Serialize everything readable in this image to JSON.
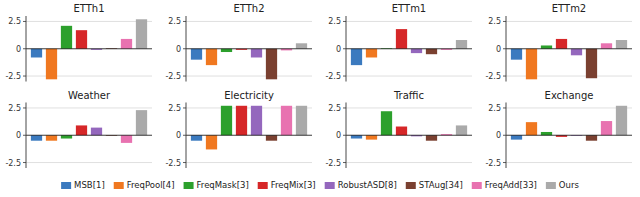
{
  "chart_data": [
    {
      "type": "bar",
      "title": "ETTh1",
      "categories": [
        "MSB[1]",
        "FreqPool[4]",
        "FreqMask[3]",
        "FreqMix[3]",
        "RobustASD[8]",
        "STAug[34]",
        "FreqAdd[33]",
        "Ours"
      ],
      "values": [
        -0.8,
        -2.8,
        2.1,
        1.7,
        -0.1,
        0.05,
        0.9,
        2.7
      ],
      "colors": [
        "#3b7abf",
        "#f07820",
        "#2ca02c",
        "#d62728",
        "#9467bd",
        "#7a4030",
        "#e872b0",
        "#aaaaaa"
      ],
      "ylim": [
        -3.0,
        3.0
      ],
      "yticks": [
        -2.5,
        0,
        2.5
      ],
      "grid": true,
      "tick_labels": "y",
      "legend": "bottom"
    },
    {
      "type": "bar",
      "title": "ETTh2",
      "categories": [
        "MSB[1]",
        "FreqPool[4]",
        "FreqMask[3]",
        "FreqMix[3]",
        "RobustASD[8]",
        "STAug[34]",
        "FreqAdd[33]",
        "Ours"
      ],
      "values": [
        -1.0,
        -1.5,
        -0.3,
        -0.1,
        -0.8,
        -2.8,
        -0.15,
        0.5
      ],
      "colors": [
        "#3b7abf",
        "#f07820",
        "#2ca02c",
        "#d62728",
        "#9467bd",
        "#7a4030",
        "#e872b0",
        "#aaaaaa"
      ],
      "ylim": [
        -3.0,
        3.0
      ],
      "yticks": [
        -2.5,
        0,
        2.5
      ],
      "grid": true,
      "tick_labels": "y"
    },
    {
      "type": "bar",
      "title": "ETTm1",
      "categories": [
        "MSB[1]",
        "FreqPool[4]",
        "FreqMask[3]",
        "FreqMix[3]",
        "RobustASD[8]",
        "STAug[34]",
        "FreqAdd[33]",
        "Ours"
      ],
      "values": [
        -1.5,
        -0.8,
        0.05,
        1.8,
        -0.4,
        -0.5,
        -0.1,
        0.8
      ],
      "colors": [
        "#3b7abf",
        "#f07820",
        "#2ca02c",
        "#d62728",
        "#9467bd",
        "#7a4030",
        "#e872b0",
        "#aaaaaa"
      ],
      "ylim": [
        -3.0,
        3.0
      ],
      "yticks": [
        -2.5,
        0,
        2.5
      ],
      "grid": true,
      "tick_labels": "y"
    },
    {
      "type": "bar",
      "title": "ETTm2",
      "categories": [
        "MSB[1]",
        "FreqPool[4]",
        "FreqMask[3]",
        "FreqMix[3]",
        "RobustASD[8]",
        "STAug[34]",
        "FreqAdd[33]",
        "Ours"
      ],
      "values": [
        -1.0,
        -2.8,
        0.3,
        0.9,
        -0.6,
        -2.7,
        0.5,
        0.8
      ],
      "colors": [
        "#3b7abf",
        "#f07820",
        "#2ca02c",
        "#d62728",
        "#9467bd",
        "#7a4030",
        "#e872b0",
        "#aaaaaa"
      ],
      "ylim": [
        -3.0,
        3.0
      ],
      "yticks": [
        -2.5,
        0,
        2.5
      ],
      "grid": true,
      "tick_labels": "y"
    },
    {
      "type": "bar",
      "title": "Weather",
      "categories": [
        "MSB[1]",
        "FreqPool[4]",
        "FreqMask[3]",
        "FreqMix[3]",
        "RobustASD[8]",
        "STAug[34]",
        "FreqAdd[33]",
        "Ours"
      ],
      "values": [
        -0.5,
        -0.5,
        -0.3,
        0.9,
        0.7,
        -0.05,
        -0.7,
        2.3
      ],
      "colors": [
        "#3b7abf",
        "#f07820",
        "#2ca02c",
        "#d62728",
        "#9467bd",
        "#7a4030",
        "#e872b0",
        "#aaaaaa"
      ],
      "ylim": [
        -3.0,
        3.0
      ],
      "yticks": [
        -2.5,
        0,
        2.5
      ],
      "grid": true,
      "tick_labels": "y"
    },
    {
      "type": "bar",
      "title": "Electricity",
      "categories": [
        "MSB[1]",
        "FreqPool[4]",
        "FreqMask[3]",
        "FreqMix[3]",
        "RobustASD[8]",
        "STAug[34]",
        "FreqAdd[33]",
        "Ours"
      ],
      "values": [
        -0.5,
        -1.3,
        2.7,
        2.7,
        2.7,
        -0.5,
        2.7,
        2.7
      ],
      "colors": [
        "#3b7abf",
        "#f07820",
        "#2ca02c",
        "#d62728",
        "#9467bd",
        "#7a4030",
        "#e872b0",
        "#aaaaaa"
      ],
      "ylim": [
        -3.0,
        3.0
      ],
      "yticks": [
        -2.5,
        0,
        2.5
      ],
      "grid": true,
      "tick_labels": "y"
    },
    {
      "type": "bar",
      "title": "Traffic",
      "categories": [
        "MSB[1]",
        "FreqPool[4]",
        "FreqMask[3]",
        "FreqMix[3]",
        "RobustASD[8]",
        "STAug[34]",
        "FreqAdd[33]",
        "Ours"
      ],
      "values": [
        -0.3,
        -0.4,
        2.2,
        0.8,
        -0.1,
        -0.5,
        0.1,
        0.9
      ],
      "colors": [
        "#3b7abf",
        "#f07820",
        "#2ca02c",
        "#d62728",
        "#9467bd",
        "#7a4030",
        "#e872b0",
        "#aaaaaa"
      ],
      "ylim": [
        -3.0,
        3.0
      ],
      "yticks": [
        -2.5,
        0,
        2.5
      ],
      "grid": true,
      "tick_labels": "y"
    },
    {
      "type": "bar",
      "title": "Exchange",
      "categories": [
        "MSB[1]",
        "FreqPool[4]",
        "FreqMask[3]",
        "FreqMix[3]",
        "RobustASD[8]",
        "STAug[34]",
        "FreqAdd[33]",
        "Ours"
      ],
      "values": [
        -0.4,
        1.2,
        0.3,
        -0.15,
        -0.05,
        -0.5,
        1.3,
        2.7
      ],
      "colors": [
        "#3b7abf",
        "#f07820",
        "#2ca02c",
        "#d62728",
        "#9467bd",
        "#7a4030",
        "#e872b0",
        "#aaaaaa"
      ],
      "ylim": [
        -3.0,
        3.0
      ],
      "yticks": [
        -2.5,
        0,
        2.5
      ],
      "grid": true,
      "tick_labels": "y"
    }
  ]
}
